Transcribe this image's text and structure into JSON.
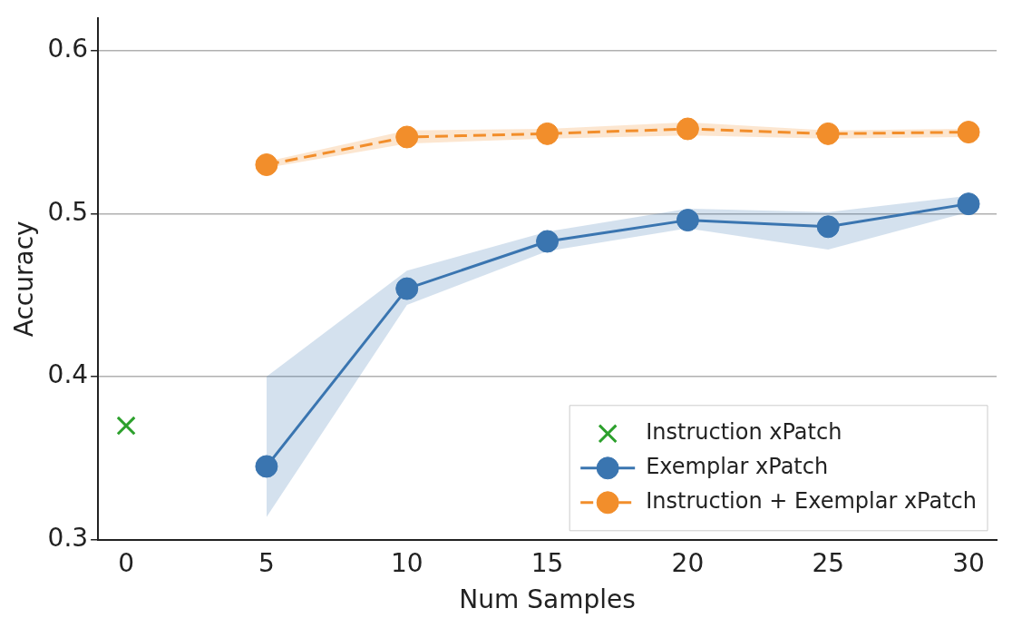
{
  "chart_data": {
    "type": "line",
    "xlabel": "Num Samples",
    "ylabel": "Accuracy",
    "xlim": [
      -1,
      31
    ],
    "xticks": [
      0,
      5,
      10,
      15,
      20,
      25,
      30
    ],
    "ylim": [
      0.3,
      0.62
    ],
    "yticks": [
      0.3,
      0.4,
      0.5,
      0.6
    ],
    "grid": "y",
    "legend": "bottom right",
    "series": [
      {
        "name": "Instruction xPatch",
        "type": "scatter",
        "marker": "cross",
        "color": "#2ca02c",
        "x": [
          0
        ],
        "values": [
          0.37
        ]
      },
      {
        "name": "Exemplar xPatch",
        "type": "line",
        "marker": "circle",
        "line_style": "solid",
        "color": "#3a75b0",
        "x": [
          5,
          10,
          15,
          20,
          25,
          30
        ],
        "values": [
          0.345,
          0.454,
          0.483,
          0.496,
          0.492,
          0.506
        ],
        "lower": [
          0.314,
          0.444,
          0.477,
          0.491,
          0.478,
          0.501
        ],
        "upper": [
          0.4,
          0.465,
          0.489,
          0.503,
          0.501,
          0.511
        ]
      },
      {
        "name": "Instruction + Exemplar xPatch",
        "type": "line",
        "marker": "circle",
        "line_style": "dashed",
        "color": "#f28e2b",
        "x": [
          5,
          10,
          15,
          20,
          25,
          30
        ],
        "values": [
          0.53,
          0.547,
          0.549,
          0.552,
          0.549,
          0.55
        ],
        "lower": [
          0.528,
          0.543,
          0.546,
          0.548,
          0.546,
          0.547
        ],
        "upper": [
          0.532,
          0.551,
          0.552,
          0.556,
          0.551,
          0.552
        ]
      }
    ]
  }
}
